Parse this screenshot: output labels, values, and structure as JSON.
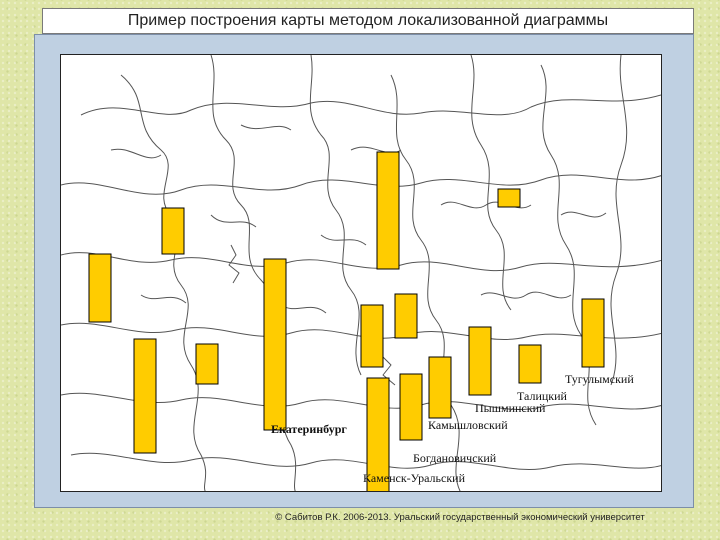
{
  "header": {
    "title": "Пример построения карты методом локализованной диаграммы"
  },
  "map": {
    "bar_color": "#ffcc00",
    "bar_outline": "#000000",
    "boundary_color": "#555555",
    "district_labels": [
      "Тугулымский",
      "Талицкий",
      "Пышминский",
      "Камышловский",
      "Екатеринбург",
      "Богдановичский",
      "Каменск-Уральский"
    ]
  },
  "footer": {
    "copyright": "© Сабитов Р.К. 2006-2013. Уральский государственный экономический университет"
  }
}
